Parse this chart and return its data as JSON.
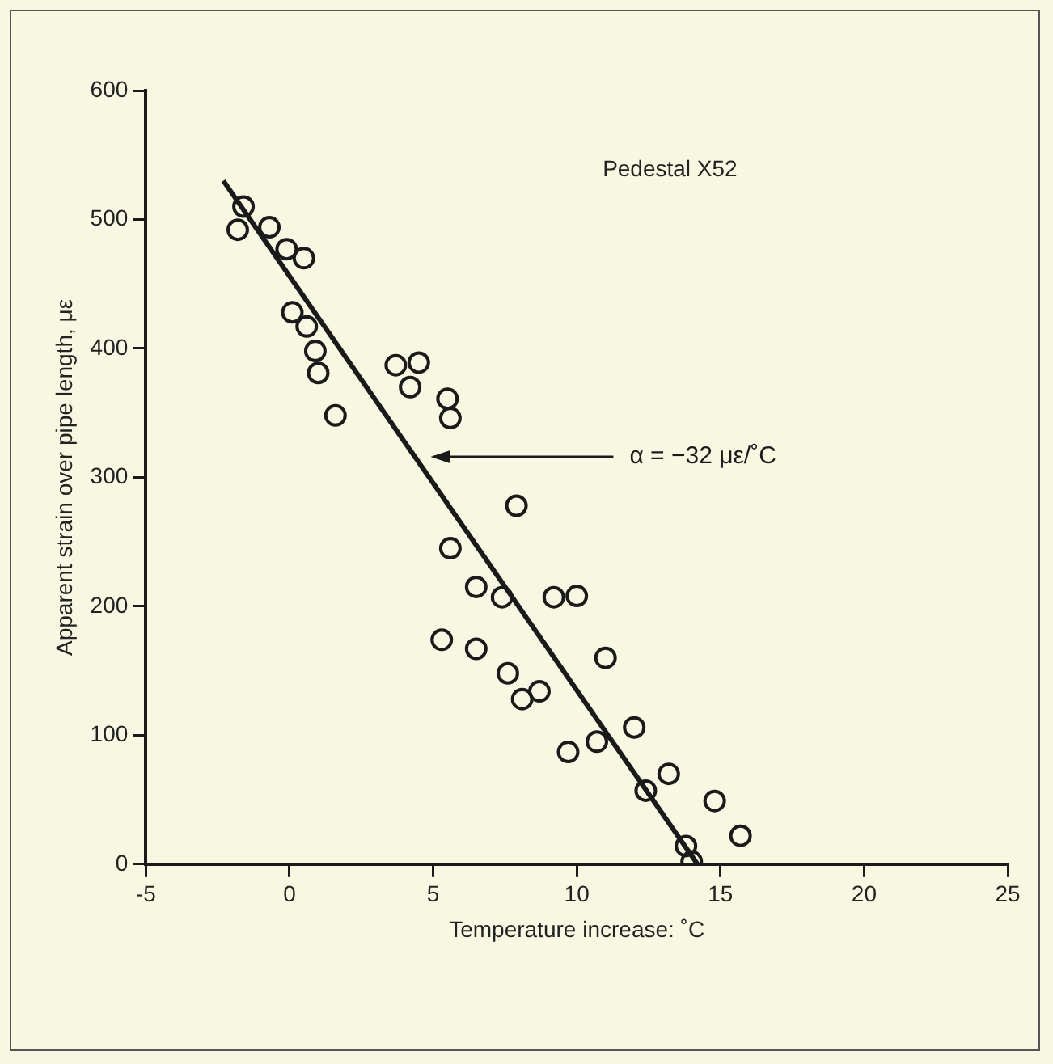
{
  "chart_data": {
    "type": "scatter",
    "xlabel": "Temperature increase: ˚C",
    "ylabel": "Apparent strain over pipe length, με",
    "xlim": [
      -5,
      25
    ],
    "xticks": [
      -5,
      0,
      5,
      10,
      15,
      20,
      25
    ],
    "ylim": [
      0,
      600
    ],
    "yticks": [
      0,
      100,
      200,
      300,
      400,
      500,
      600
    ],
    "grid": false,
    "legend": false,
    "marker": "circle",
    "series": [
      {
        "color": "#1a1a1a",
        "x": [
          -1.6,
          -1.8,
          -0.7,
          -0.1,
          0.5,
          0.1,
          0.6,
          0.9,
          1.0,
          1.6,
          3.7,
          4.5,
          4.2,
          5.5,
          5.6,
          7.9,
          5.6,
          6.5,
          7.4,
          9.2,
          10.0,
          5.3,
          6.5,
          7.6,
          8.7,
          8.1,
          11.0,
          12.0,
          10.7,
          9.7,
          13.2,
          12.4,
          14.8,
          15.7,
          13.8,
          14.0
        ],
        "values": [
          510,
          492,
          494,
          477,
          470,
          428,
          417,
          398,
          381,
          348,
          387,
          389,
          370,
          361,
          346,
          278,
          245,
          215,
          207,
          207,
          208,
          174,
          167,
          148,
          134,
          128,
          160,
          106,
          95,
          87,
          70,
          57,
          49,
          22,
          14,
          2
        ]
      },
      {
        "type": "line",
        "color": "#1a1a1a",
        "marker": "none",
        "line_style": "solid",
        "x": [
          -2.3,
          14.2
        ],
        "values": [
          530,
          0
        ]
      }
    ],
    "annotations": [
      "Pedestal X52",
      {
        "text": "α = −32 με/˚C",
        "x": 4.8,
        "y": 316
      }
    ]
  }
}
